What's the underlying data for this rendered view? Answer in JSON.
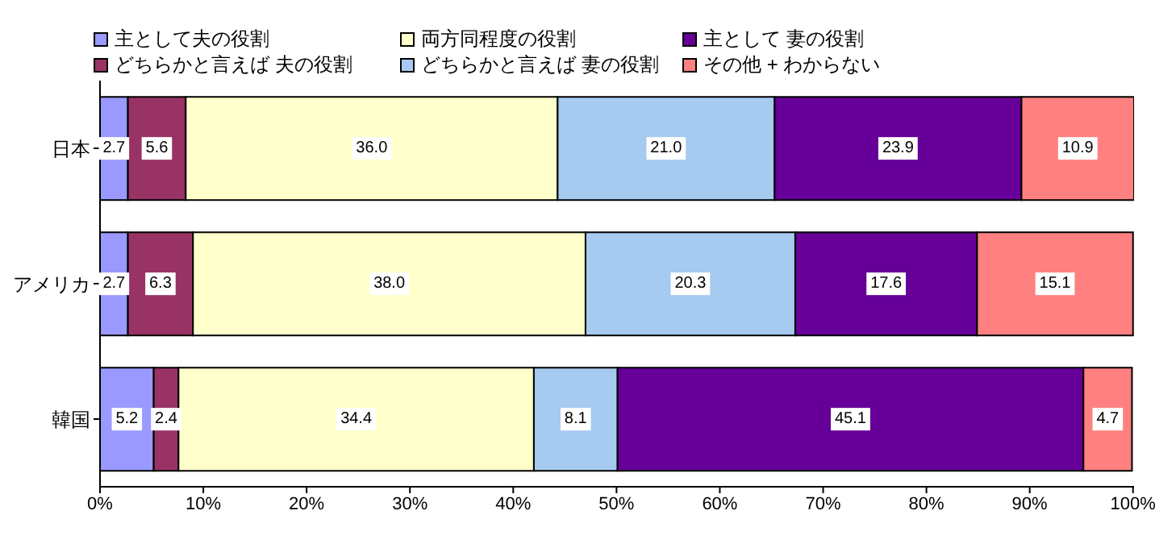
{
  "chart_data": {
    "type": "bar",
    "orientation": "horizontal",
    "stacked": true,
    "categories": [
      "日本",
      "アメリカ",
      "韓国"
    ],
    "series": [
      {
        "name": "主として夫の役割",
        "color": "#9999ff",
        "values": [
          2.7,
          2.7,
          5.2
        ],
        "value_labels": [
          "2.7",
          "2.7",
          "5.2"
        ]
      },
      {
        "name": "どちらかと言えば 夫の役割",
        "color": "#993366",
        "values": [
          5.6,
          6.3,
          2.4
        ],
        "value_labels": [
          "5.6",
          "6.3",
          "2.4"
        ]
      },
      {
        "name": "両方同程度の役割",
        "color": "#ffffcc",
        "values": [
          36.0,
          38.0,
          34.4
        ],
        "value_labels": [
          "36.0",
          "38.0",
          "34.4"
        ]
      },
      {
        "name": "どちらかと言えば 妻の役割",
        "color": "#a6caf0",
        "values": [
          21.0,
          20.3,
          8.1
        ],
        "value_labels": [
          "21.0",
          "20.3",
          "8.1"
        ]
      },
      {
        "name": "主として 妻の役割",
        "color": "#660099",
        "values": [
          23.9,
          17.6,
          45.1
        ],
        "value_labels": [
          "23.9",
          "17.6",
          "45.1"
        ]
      },
      {
        "name": "その他 + わからない",
        "color": "#ff8080",
        "values": [
          10.9,
          15.1,
          4.7
        ],
        "value_labels": [
          "10.9",
          "15.1",
          "4.7"
        ]
      }
    ],
    "xlim": [
      0,
      100.1
    ],
    "xticks": [
      {
        "value": 0,
        "label": "0%"
      },
      {
        "value": 10,
        "label": "10%"
      },
      {
        "value": 20,
        "label": "20%"
      },
      {
        "value": 30,
        "label": "30%"
      },
      {
        "value": 40,
        "label": "40%"
      },
      {
        "value": 50,
        "label": "50%"
      },
      {
        "value": 60,
        "label": "60%"
      },
      {
        "value": 70,
        "label": "70%"
      },
      {
        "value": 80,
        "label": "80%"
      },
      {
        "value": 90,
        "label": "90%"
      },
      {
        "value": 100,
        "label": "100%"
      }
    ],
    "grid": false,
    "legend": "top"
  }
}
